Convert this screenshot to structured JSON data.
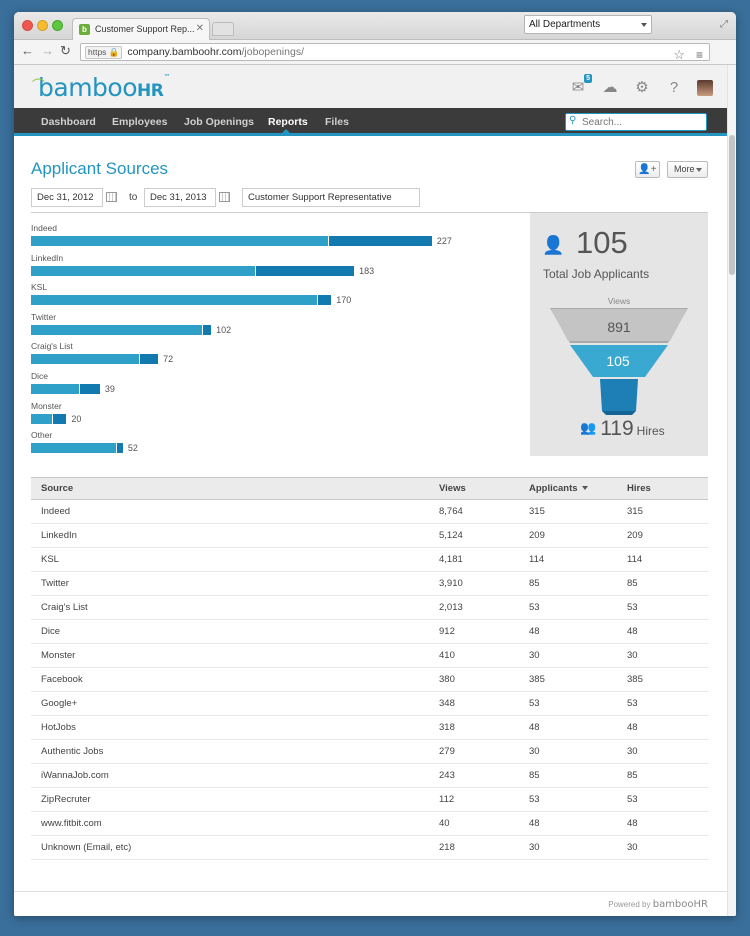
{
  "browser": {
    "tab_title": "Customer Support Rep...",
    "url_scheme": "https",
    "url_domain": "company.bamboohr.com",
    "url_path": "/jobopenings/",
    "department_select": "All Departments"
  },
  "app": {
    "logo_text": "bamboo",
    "logo_suffix": "HR",
    "logo_tm": "™",
    "mail_count": "5",
    "nav": [
      "Dashboard",
      "Employees",
      "Job Openings",
      "Reports",
      "Files"
    ],
    "active_nav": "Reports",
    "search_placeholder": "Search..."
  },
  "report": {
    "title": "Applicant Sources",
    "more_label": "More",
    "date_from": "Dec 31, 2012",
    "to_label": "to",
    "date_to": "Dec 31, 2013",
    "job_filter": "Customer Support Representative"
  },
  "chart_data": {
    "type": "bar",
    "orientation": "horizontal",
    "stacked": true,
    "categories": [
      "Indeed",
      "LinkedIn",
      "KSL",
      "Twitter",
      "Craig's List",
      "Dice",
      "Monster",
      "Other"
    ],
    "totals": [
      227,
      183,
      170,
      102,
      72,
      39,
      20,
      52
    ],
    "series": [
      {
        "values": [
          168,
          127,
          162,
          97,
          61,
          27,
          12,
          48
        ]
      },
      {
        "values": [
          59,
          56,
          8,
          5,
          11,
          12,
          8,
          4
        ]
      }
    ],
    "colors": [
      "#2fa0c8",
      "#137ab0"
    ],
    "xlim": [
      0,
      235
    ]
  },
  "summary": {
    "total_applicants": "105",
    "total_label": "Total Job Applicants",
    "views_label": "Views",
    "views": "891",
    "applicants": "105",
    "hires": "119",
    "hires_label": "Hires"
  },
  "table": {
    "headers": [
      "Source",
      "Views",
      "Applicants",
      "Hires"
    ],
    "rows": [
      [
        "Indeed",
        "8,764",
        "315",
        "315"
      ],
      [
        "LinkedIn",
        "5,124",
        "209",
        "209"
      ],
      [
        "KSL",
        "4,181",
        "114",
        "114"
      ],
      [
        "Twitter",
        "3,910",
        "85",
        "85"
      ],
      [
        "Craig's List",
        "2,013",
        "53",
        "53"
      ],
      [
        "Dice",
        "912",
        "48",
        "48"
      ],
      [
        "Monster",
        "410",
        "30",
        "30"
      ],
      [
        "Facebook",
        "380",
        "385",
        "385"
      ],
      [
        "Google+",
        "348",
        "53",
        "53"
      ],
      [
        "HotJobs",
        "318",
        "48",
        "48"
      ],
      [
        "Authentic Jobs",
        "279",
        "30",
        "30"
      ],
      [
        "iWannaJob.com",
        "243",
        "85",
        "85"
      ],
      [
        "ZipRecruter",
        "112",
        "53",
        "53"
      ],
      [
        "www.fitbit.com",
        "40",
        "48",
        "48"
      ],
      [
        "Unknown (Email, etc)",
        "218",
        "30",
        "30"
      ]
    ]
  },
  "footer": {
    "powered_by": "Powered by",
    "brand": "bambooHR"
  }
}
